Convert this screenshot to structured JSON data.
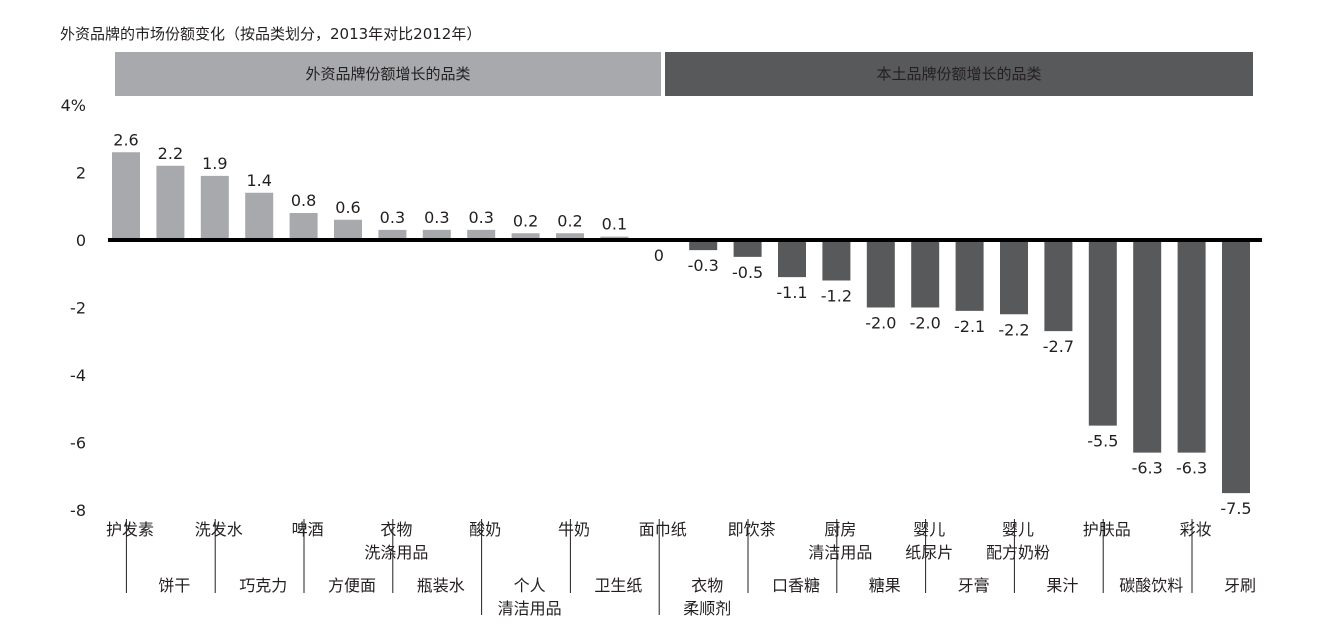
{
  "chart_data": {
    "type": "bar",
    "title": "外资品牌的市场份额变化（按品类划分，2013年对比2012年）",
    "group_banners": [
      {
        "label": "外资品牌份额增长的品类",
        "color": "#a7a9ac",
        "text_color": "#231f20"
      },
      {
        "label": "本土品牌份额增长的品类",
        "color": "#58595b",
        "text_color": "#ffffff"
      }
    ],
    "y_ticks": [
      "4%",
      "2",
      "0",
      "-2",
      "-4",
      "-6",
      "-8"
    ],
    "ylim": [
      -8,
      4
    ],
    "categories": [
      "护发素",
      "饼干",
      "洗发水",
      "巧克力",
      "啤酒",
      "方便面",
      "衣物\n洗涤用品",
      "瓶装水",
      "酸奶",
      "个人\n清洁用品",
      "牛奶",
      "卫生纸",
      "面巾纸",
      "衣物\n柔顺剂",
      "即饮茶",
      "口香糖",
      "厨房\n清洁用品",
      "糖果",
      "婴儿\n纸尿片",
      "牙膏",
      "婴儿\n配方奶粉",
      "果汁",
      "护肤品",
      "碳酸饮料",
      "彩妆",
      "牙刷"
    ],
    "values": [
      2.6,
      2.2,
      1.9,
      1.4,
      0.8,
      0.6,
      0.3,
      0.3,
      0.3,
      0.2,
      0.2,
      0.1,
      0,
      -0.3,
      -0.5,
      -1.1,
      -1.2,
      -2.0,
      -2.0,
      -2.1,
      -2.2,
      -2.7,
      -5.5,
      -6.3,
      -6.3,
      -7.5
    ],
    "value_labels": [
      "2.6",
      "2.2",
      "1.9",
      "1.4",
      "0.8",
      "0.6",
      "0.3",
      "0.3",
      "0.3",
      "0.2",
      "0.2",
      "0.1",
      "0",
      "-0.3",
      "-0.5",
      "-1.1",
      "-1.2",
      "-2.0",
      "-2.0",
      "-2.1",
      "-2.2",
      "-2.7",
      "-5.5",
      "-6.3",
      "-6.3",
      "-7.5"
    ],
    "colors": {
      "positive": "#a7a9ac",
      "negative": "#58595b",
      "zero_line": "#000000",
      "separator": "#231f20"
    },
    "grid": false,
    "legend": "none"
  }
}
